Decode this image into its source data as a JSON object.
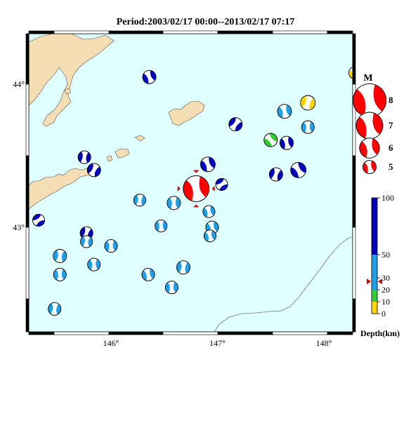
{
  "title": "Period:2003/02/17 00:00--2013/02/17 07:17",
  "map": {
    "lon_ticks": [
      {
        "lon": 146,
        "label": "146°"
      },
      {
        "lon": 147,
        "label": "147°"
      },
      {
        "lon": 148,
        "label": "148°"
      }
    ],
    "lat_ticks": [
      {
        "lat": 44,
        "label": "44°"
      },
      {
        "lat": 43,
        "label": "43°"
      }
    ],
    "colors": {
      "ocean": "#e0ffff",
      "land": "#f5deb3",
      "frame": "#000000"
    }
  },
  "magnitude_legend": {
    "title": "M",
    "items": [
      {
        "label": "8",
        "magnitude": 8
      },
      {
        "label": "7",
        "magnitude": 7
      },
      {
        "label": "6",
        "magnitude": 6
      },
      {
        "label": "5",
        "magnitude": 5
      }
    ],
    "color": "#ff0000"
  },
  "depth_scale": {
    "title": "Depth(km)",
    "ticks": [
      "100",
      "50",
      "30",
      "20",
      "10",
      "0"
    ],
    "bands": [
      {
        "from": 0,
        "to": 10,
        "color": "#ffd700"
      },
      {
        "from": 10,
        "to": 20,
        "color": "#33cc33"
      },
      {
        "from": 20,
        "to": 50,
        "color": "#1e9fe8"
      },
      {
        "from": 50,
        "to": 100,
        "color": "#0000bb"
      }
    ],
    "marker_depth": 27
  },
  "events": [
    {
      "lon": 146.36,
      "lat": 44.05,
      "depth": 80,
      "mag": 5.0,
      "rot": 20
    },
    {
      "lon": 148.29,
      "lat": 44.08,
      "depth": 5,
      "mag": 4.8,
      "rot": 10
    },
    {
      "lon": 147.85,
      "lat": 43.87,
      "depth": 5,
      "mag": 5.2,
      "rot": 60
    },
    {
      "lon": 147.63,
      "lat": 43.81,
      "depth": 40,
      "mag": 5.1,
      "rot": 30
    },
    {
      "lon": 147.17,
      "lat": 43.72,
      "depth": 80,
      "mag": 5.0,
      "rot": 80
    },
    {
      "lon": 147.85,
      "lat": 43.7,
      "depth": 40,
      "mag": 4.9,
      "rot": 40
    },
    {
      "lon": 147.5,
      "lat": 43.61,
      "depth": 15,
      "mag": 5.0,
      "rot": 0
    },
    {
      "lon": 147.65,
      "lat": 43.59,
      "depth": 80,
      "mag": 5.0,
      "rot": 30
    },
    {
      "lon": 145.75,
      "lat": 43.49,
      "depth": 80,
      "mag": 4.9,
      "rot": 50
    },
    {
      "lon": 146.91,
      "lat": 43.44,
      "depth": 80,
      "mag": 5.2,
      "rot": 20
    },
    {
      "lon": 145.84,
      "lat": 43.4,
      "depth": 80,
      "mag": 5.0,
      "rot": 70
    },
    {
      "lon": 147.76,
      "lat": 43.4,
      "depth": 80,
      "mag": 5.3,
      "rot": 10
    },
    {
      "lon": 147.55,
      "lat": 43.37,
      "depth": 80,
      "mag": 5.0,
      "rot": 60
    },
    {
      "lon": 147.04,
      "lat": 43.3,
      "depth": 80,
      "mag": 4.8,
      "rot": 100
    },
    {
      "lon": 146.83,
      "lat": 43.3,
      "depth": 70,
      "mag": 4.6,
      "rot": 40
    },
    {
      "lon": 146.8,
      "lat": 43.27,
      "depth": 27,
      "mag": 6.9,
      "rot": 30,
      "highlight": true
    },
    {
      "lon": 146.27,
      "lat": 43.19,
      "depth": 40,
      "mag": 4.8,
      "rot": 50
    },
    {
      "lon": 146.59,
      "lat": 43.17,
      "depth": 40,
      "mag": 5.0,
      "rot": 40
    },
    {
      "lon": 146.92,
      "lat": 43.11,
      "depth": 40,
      "mag": 4.8,
      "rot": 30
    },
    {
      "lon": 145.32,
      "lat": 43.05,
      "depth": 80,
      "mag": 4.8,
      "rot": 100
    },
    {
      "lon": 146.47,
      "lat": 43.01,
      "depth": 40,
      "mag": 4.8,
      "rot": 40
    },
    {
      "lon": 146.95,
      "lat": 43.0,
      "depth": 40,
      "mag": 4.9,
      "rot": 30
    },
    {
      "lon": 145.77,
      "lat": 42.96,
      "depth": 80,
      "mag": 4.9,
      "rot": 60
    },
    {
      "lon": 146.93,
      "lat": 42.94,
      "depth": 40,
      "mag": 4.8,
      "rot": 30
    },
    {
      "lon": 145.77,
      "lat": 42.9,
      "depth": 40,
      "mag": 4.8,
      "rot": 50
    },
    {
      "lon": 146.0,
      "lat": 42.87,
      "depth": 40,
      "mag": 4.9,
      "rot": 40
    },
    {
      "lon": 145.52,
      "lat": 42.8,
      "depth": 40,
      "mag": 5.0,
      "rot": 50
    },
    {
      "lon": 145.84,
      "lat": 42.74,
      "depth": 40,
      "mag": 4.9,
      "rot": 40
    },
    {
      "lon": 146.68,
      "lat": 42.72,
      "depth": 40,
      "mag": 5.0,
      "rot": 50
    },
    {
      "lon": 145.52,
      "lat": 42.67,
      "depth": 40,
      "mag": 4.9,
      "rot": 40
    },
    {
      "lon": 146.35,
      "lat": 42.67,
      "depth": 40,
      "mag": 4.9,
      "rot": 30
    },
    {
      "lon": 146.57,
      "lat": 42.58,
      "depth": 40,
      "mag": 4.9,
      "rot": 40
    },
    {
      "lon": 145.47,
      "lat": 42.43,
      "depth": 40,
      "mag": 4.9,
      "rot": 50
    }
  ]
}
